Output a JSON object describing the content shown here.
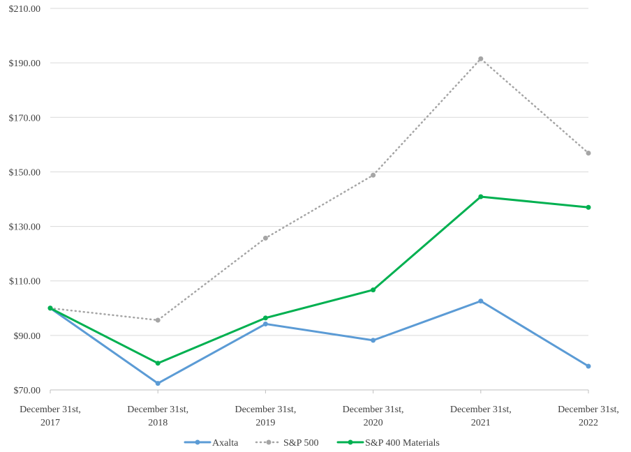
{
  "chart_data": {
    "type": "line",
    "categories": [
      [
        "December 31st,",
        "2017"
      ],
      [
        "December 31st,",
        "2018"
      ],
      [
        "December 31st,",
        "2019"
      ],
      [
        "December 31st,",
        "2020"
      ],
      [
        "December 31st,",
        "2021"
      ],
      [
        "December 31st,",
        "2022"
      ]
    ],
    "ylim": [
      70,
      210
    ],
    "yticks": [
      "$70.00",
      "$90.00",
      "$110.00",
      "$130.00",
      "$150.00",
      "$170.00",
      "$190.00",
      "$210.00"
    ],
    "ytick_values": [
      70,
      90,
      110,
      130,
      150,
      170,
      190,
      210
    ],
    "grid": true,
    "legend_position": "bottom",
    "series": [
      {
        "name": "Axalta",
        "color": "#5b9bd5",
        "style": "solid",
        "values": [
          100.0,
          72.4,
          94.2,
          88.2,
          102.6,
          78.7
        ]
      },
      {
        "name": "S&P 500",
        "color": "#a5a5a5",
        "style": "dotted",
        "values": [
          100.0,
          95.6,
          125.7,
          148.8,
          191.5,
          156.9
        ]
      },
      {
        "name": "S&P 400 Materials",
        "color": "#00b050",
        "style": "solid",
        "values": [
          100.0,
          79.8,
          96.4,
          106.7,
          140.9,
          137.0
        ]
      }
    ]
  }
}
